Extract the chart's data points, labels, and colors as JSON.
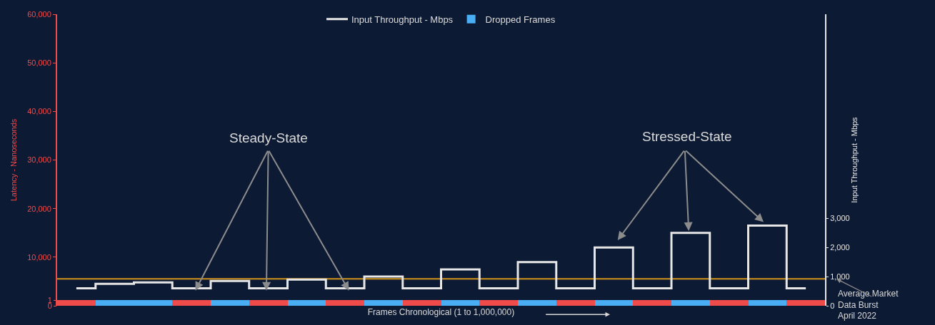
{
  "chart_data": {
    "type": "bar",
    "xlabel": "Frames Chronological (1 to 1,000,000)",
    "ylabel": "Latency - Nanoseconds",
    "y2label": "Input Throughput - Mbps",
    "categories": [
      null,
      null,
      null,
      null,
      null,
      null,
      null,
      null,
      null,
      null,
      null,
      null,
      null,
      null,
      null,
      null,
      null,
      null,
      null,
      null
    ],
    "series": [
      {
        "name": "Input Throughput - Mbps",
        "type": "step",
        "axis": "y2",
        "color": "#e6e6e6",
        "values": [
          600,
          750,
          800,
          600,
          850,
          600,
          900,
          600,
          1000,
          600,
          1250,
          600,
          1500,
          600,
          2000,
          600,
          2500,
          600,
          2750,
          600
        ]
      },
      {
        "axis": "y3",
        "color": "#f04b4b",
        "values": [
          1,
          null,
          null,
          1,
          null,
          1,
          null,
          1,
          null,
          1,
          null,
          1,
          null,
          1,
          null,
          1,
          null,
          1,
          null,
          1
        ]
      },
      {
        "name": "Dropped Frames",
        "axis": "y3",
        "color": "#4aaef5",
        "values": [
          null,
          1,
          1,
          null,
          1,
          null,
          1,
          null,
          1,
          null,
          1,
          null,
          1,
          null,
          1,
          null,
          1,
          null,
          1,
          null
        ]
      }
    ],
    "ylim": [
      0,
      60000
    ],
    "yticks": [
      {
        "value": 10000,
        "label": "10,000"
      },
      {
        "value": 20000,
        "label": "20,000"
      },
      {
        "value": 30000,
        "label": "30,000"
      },
      {
        "value": 40000,
        "label": "40,000"
      },
      {
        "value": 50000,
        "label": "50,000"
      },
      {
        "value": 60000,
        "label": "60,000"
      }
    ],
    "y3lim": [
      0,
      52
    ],
    "y3ticks": [
      0,
      1
    ],
    "y2lim": [
      0,
      10000
    ],
    "y2ticks": [
      0,
      {
        "value": 1000,
        "label": "1,000"
      },
      {
        "value": 2000,
        "label": "2,000"
      },
      {
        "value": 3000,
        "label": "3,000"
      }
    ],
    "ref_lines": [
      {
        "axis": "y2",
        "value": 920,
        "color": "#d4931a"
      }
    ],
    "annotations": [
      "Steady-State",
      "Stressed-State",
      "Average Market Data Burst April 2022"
    ],
    "legend": "top"
  }
}
